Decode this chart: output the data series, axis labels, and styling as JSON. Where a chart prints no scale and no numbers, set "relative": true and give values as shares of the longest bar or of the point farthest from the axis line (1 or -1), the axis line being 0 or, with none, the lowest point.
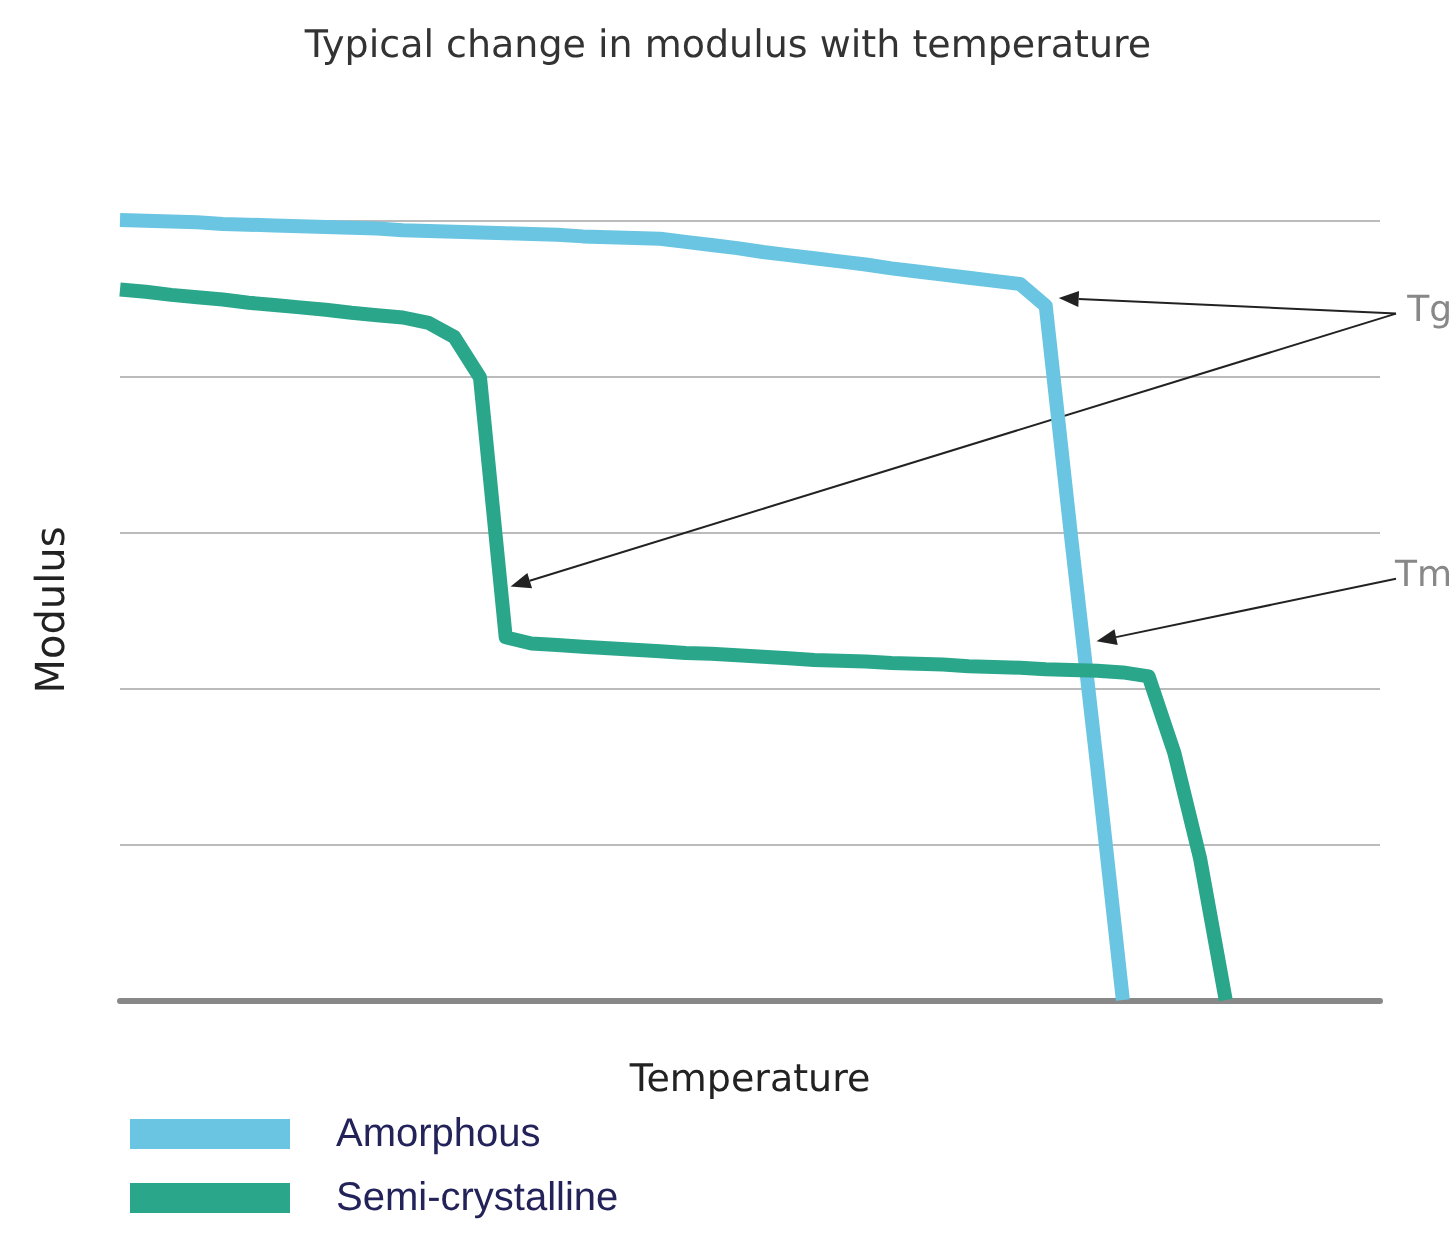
{
  "chart_data": {
    "type": "line",
    "title": "Typical change in modulus with temperature",
    "xlabel": "Temperature",
    "ylabel": "Modulus",
    "relative": true,
    "grid": "y",
    "legend": "bottom left",
    "marker": "none",
    "line_style": "solid",
    "categories": [
      null,
      null,
      null,
      null,
      null,
      null,
      null,
      null,
      null,
      null,
      null,
      null,
      null,
      null,
      null,
      null,
      null,
      null,
      null,
      null,
      null,
      null,
      null,
      null,
      null,
      null,
      null,
      null,
      null,
      null,
      null,
      null,
      null,
      null,
      null,
      null,
      null,
      null,
      null,
      null,
      null,
      null,
      null,
      null,
      null,
      null,
      null,
      null,
      null,
      null
    ],
    "series": [
      {
        "name": "Amorphous",
        "color": "#69c5e1",
        "values": [
          1,
          0.999,
          0.998,
          0.997,
          0.995,
          0.994,
          0.993,
          0.992,
          0.991,
          0.99,
          0.989,
          0.987,
          0.986,
          0.985,
          0.984,
          0.983,
          0.982,
          0.981,
          0.979,
          0.978,
          0.977,
          0.976,
          0.972,
          0.968,
          0.964,
          0.959,
          0.955,
          0.951,
          0.947,
          0.943,
          0.938,
          0.934,
          0.93,
          0.926,
          0.922,
          0.918,
          0.89,
          0.59,
          0.3,
          0,
          null,
          null,
          null,
          null,
          null,
          null,
          null,
          null,
          null,
          null
        ]
      },
      {
        "name": "Semi-crystalline",
        "color": "#2aa68a",
        "values": [
          0.911,
          0.908,
          0.904,
          0.901,
          0.898,
          0.894,
          0.891,
          0.888,
          0.885,
          0.881,
          0.878,
          0.875,
          0.868,
          0.85,
          0.798,
          0.465,
          0.457,
          0.455,
          0.453,
          0.451,
          0.449,
          0.447,
          0.445,
          0.444,
          0.442,
          0.44,
          0.438,
          0.436,
          0.435,
          0.434,
          0.432,
          0.431,
          0.43,
          0.428,
          0.427,
          0.426,
          0.424,
          0.423,
          0.422,
          0.42,
          0.415,
          0.317,
          0.182,
          0,
          null,
          null,
          null,
          null,
          null,
          null
        ]
      }
    ],
    "annotations": [
      "Tg",
      "Tm"
    ]
  }
}
